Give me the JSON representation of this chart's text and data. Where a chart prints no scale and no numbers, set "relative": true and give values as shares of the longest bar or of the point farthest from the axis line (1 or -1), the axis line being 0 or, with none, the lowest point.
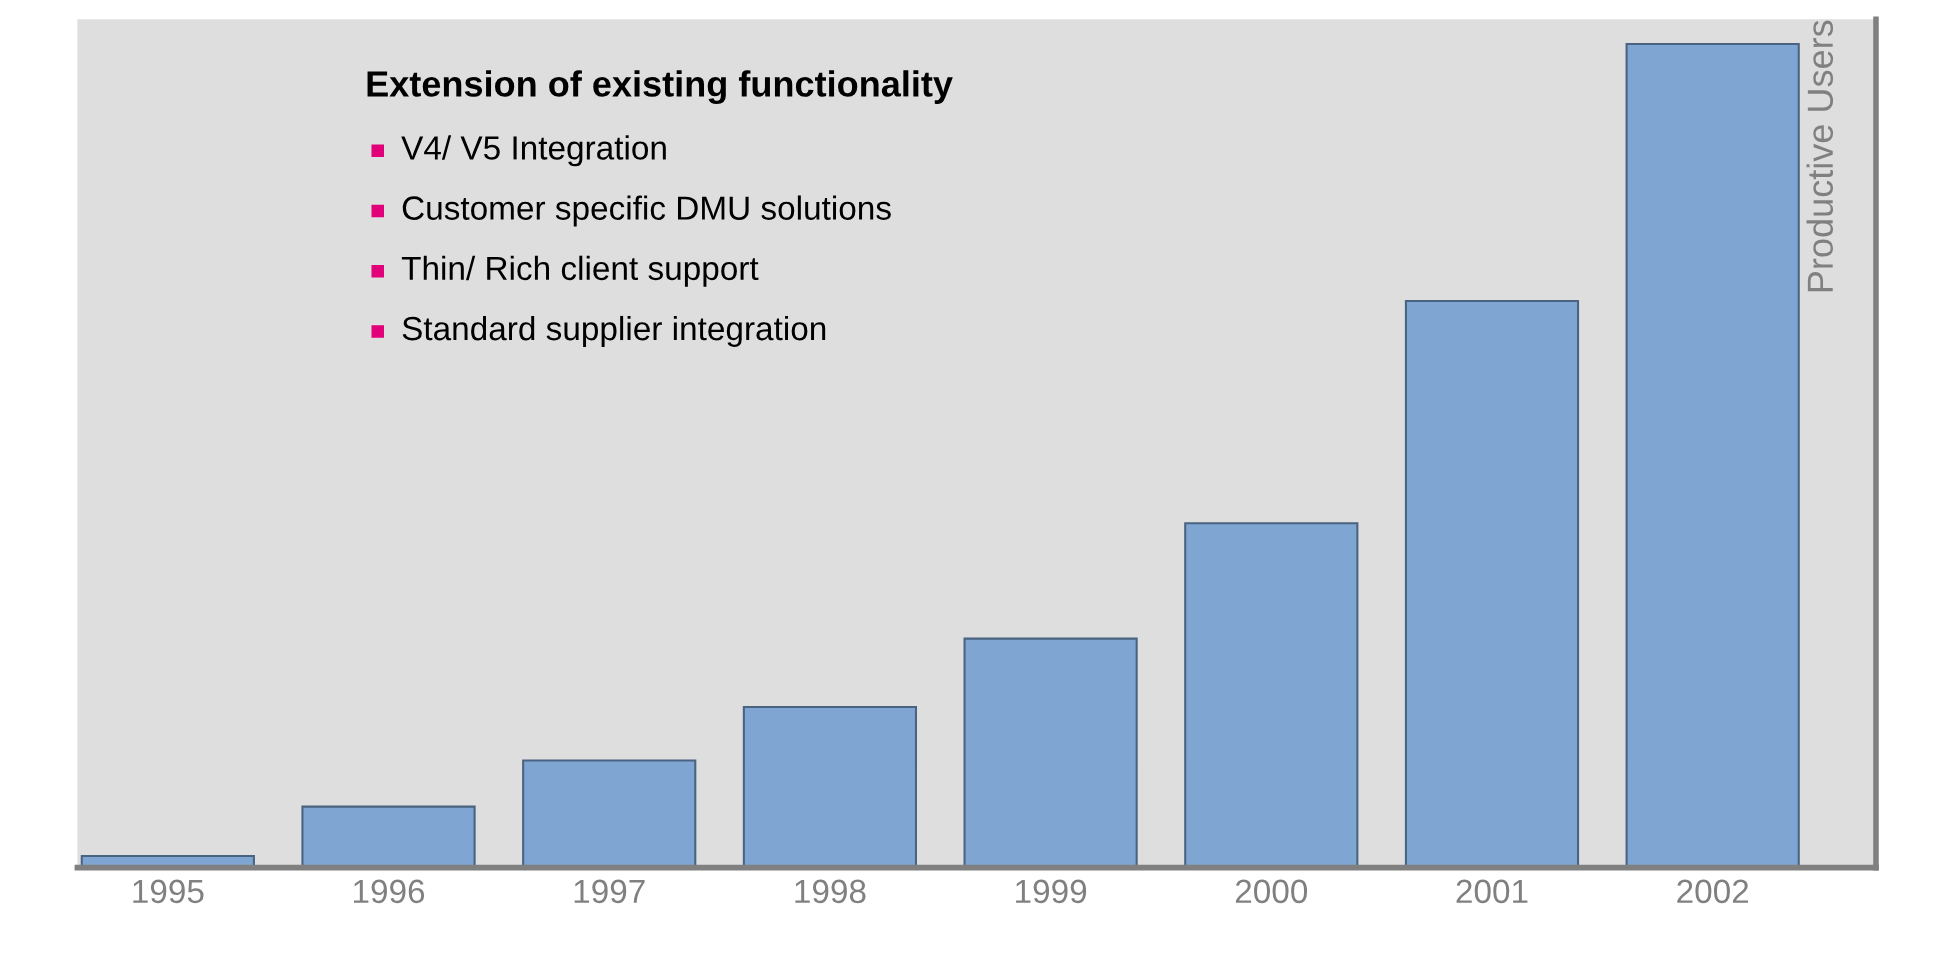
{
  "chart_data": {
    "type": "bar",
    "relative": true,
    "title": "Extension of existing functionality",
    "annotations": [
      "V4/ V5 Integration",
      "Customer specific DMU solutions",
      "Thin/ Rich client support",
      "Standard supplier integration"
    ],
    "ylabel": "Productive Users",
    "categories": [
      "1995",
      "1996",
      "1997",
      "1998",
      "1999",
      "2000",
      "2001",
      "2002"
    ],
    "values": [
      0.014,
      0.074,
      0.13,
      0.195,
      0.278,
      0.418,
      0.688,
      1
    ],
    "color": "#7fa6d2"
  }
}
